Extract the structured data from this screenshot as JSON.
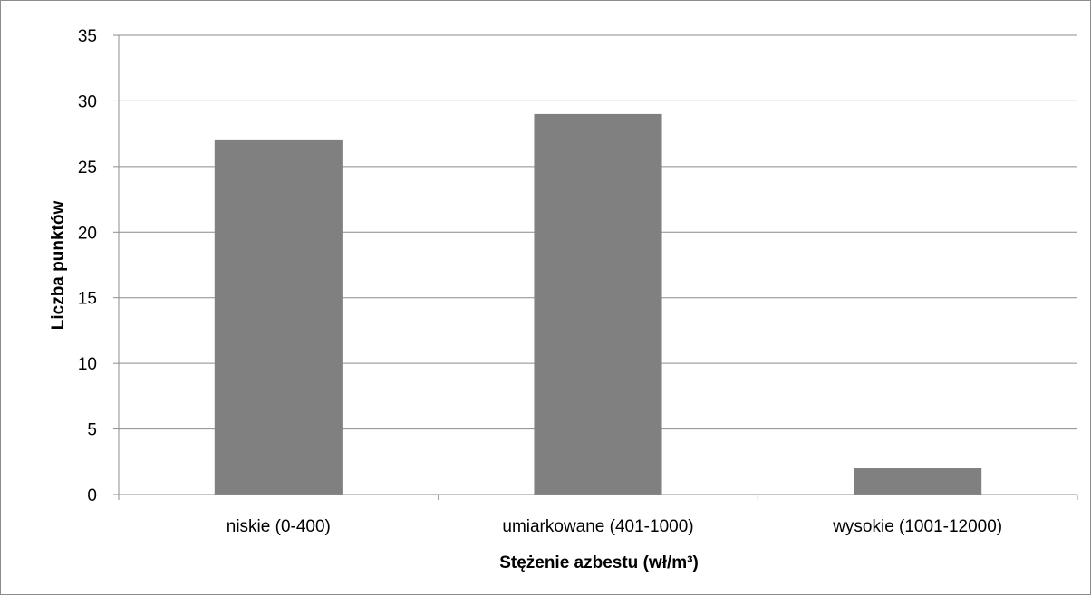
{
  "chart_data": {
    "type": "bar",
    "title": "",
    "xlabel": "Stężenie azbestu (wł/m³)",
    "ylabel": "Liczba punktów",
    "categories": [
      "niskie (0-400)",
      "umiarkowane (401-1000)",
      "wysokie (1001-12000)"
    ],
    "values": [
      27,
      29,
      2
    ],
    "ylim": [
      0,
      35
    ],
    "yticks": [
      0,
      5,
      10,
      15,
      20,
      25,
      30,
      35
    ],
    "grid": true,
    "legend": "none",
    "colors": {
      "bar": "#808080",
      "grid": "#8c8c8c",
      "axis": "#8c8c8c"
    }
  }
}
